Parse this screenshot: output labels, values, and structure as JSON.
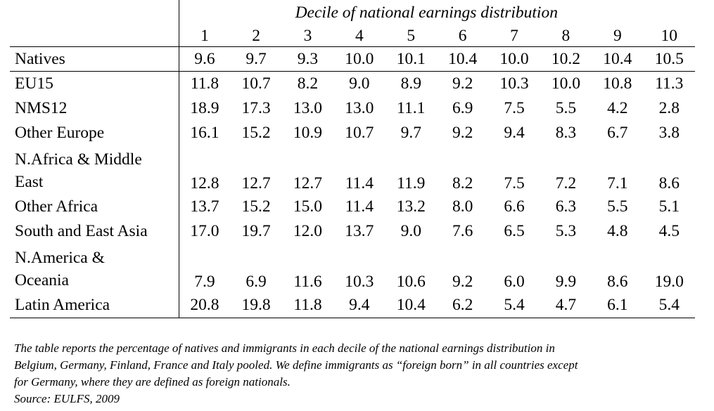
{
  "table": {
    "title": "Decile of national earnings distribution",
    "deciles": [
      "1",
      "2",
      "3",
      "4",
      "5",
      "6",
      "7",
      "8",
      "9",
      "10"
    ],
    "rows": [
      {
        "label": "Natives",
        "values": [
          "9.6",
          "9.7",
          "9.3",
          "10.0",
          "10.1",
          "10.4",
          "10.0",
          "10.2",
          "10.4",
          "10.5"
        ]
      },
      {
        "label": "EU15",
        "values": [
          "11.8",
          "10.7",
          "8.2",
          "9.0",
          "8.9",
          "9.2",
          "10.3",
          "10.0",
          "10.8",
          "11.3"
        ]
      },
      {
        "label": "NMS12",
        "values": [
          "18.9",
          "17.3",
          "13.0",
          "13.0",
          "11.1",
          "6.9",
          "7.5",
          "5.5",
          "4.2",
          "2.8"
        ]
      },
      {
        "label": "Other Europe",
        "values": [
          "16.1",
          "15.2",
          "10.9",
          "10.7",
          "9.7",
          "9.2",
          "9.4",
          "8.3",
          "6.7",
          "3.8"
        ]
      },
      {
        "label_line1": "N.Africa & Middle",
        "label_line2": "East",
        "values": [
          "12.8",
          "12.7",
          "12.7",
          "11.4",
          "11.9",
          "8.2",
          "7.5",
          "7.2",
          "7.1",
          "8.6"
        ]
      },
      {
        "label": "Other Africa",
        "values": [
          "13.7",
          "15.2",
          "15.0",
          "11.4",
          "13.2",
          "8.0",
          "6.6",
          "6.3",
          "5.5",
          "5.1"
        ]
      },
      {
        "label": "South and East Asia",
        "values": [
          "17.0",
          "19.7",
          "12.0",
          "13.7",
          "9.0",
          "7.6",
          "6.5",
          "5.3",
          "4.8",
          "4.5"
        ]
      },
      {
        "label_line1": "N.America &",
        "label_line2": "Oceania",
        "values": [
          "7.9",
          "6.9",
          "11.6",
          "10.3",
          "10.6",
          "9.2",
          "6.0",
          "9.9",
          "8.6",
          "19.0"
        ]
      },
      {
        "label": "Latin America",
        "values": [
          "20.8",
          "19.8",
          "11.8",
          "9.4",
          "10.4",
          "6.2",
          "5.4",
          "4.7",
          "6.1",
          "5.4"
        ]
      }
    ]
  },
  "note": {
    "line1": "The table reports the percentage of natives and immigrants in each decile of the national earnings distribution in",
    "line2": "Belgium, Germany, Finland, France and Italy pooled. We define immigrants as “foreign born” in all countries except",
    "line3": "for Germany, where they are defined as foreign nationals.",
    "source": "Source: EULFS, 2009"
  }
}
